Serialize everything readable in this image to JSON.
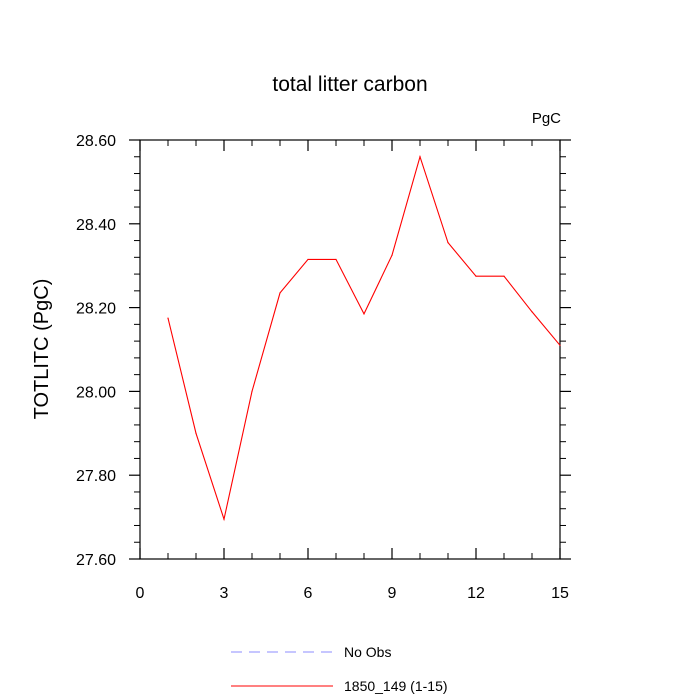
{
  "colors": {
    "model_line": "#ff0000",
    "obs_line": "#8c8cff",
    "axis": "#000000",
    "background": "#ffffff"
  },
  "chart_data": {
    "type": "line",
    "title": "total litter carbon",
    "units_label": "PgC",
    "xlabel": "",
    "ylabel": "TOTLITC  (PgC)",
    "xlim": [
      0,
      15
    ],
    "ylim": [
      27.6,
      28.6
    ],
    "x_ticks": [
      "0",
      "3",
      "6",
      "9",
      "12",
      "15"
    ],
    "y_ticks": [
      "27.60",
      "27.80",
      "28.00",
      "28.20",
      "28.40",
      "28.60"
    ],
    "grid": false,
    "legend_position": "bottom",
    "series": [
      {
        "name": "1850_149 (1-15)",
        "style": "solid",
        "color": "#ff0000",
        "x": [
          1,
          2,
          3,
          4,
          5,
          6,
          7,
          8,
          9,
          10,
          11,
          12,
          13,
          14,
          15
        ],
        "y": [
          28.175,
          27.9,
          27.695,
          28.0,
          28.235,
          28.315,
          28.315,
          28.185,
          28.325,
          28.56,
          28.355,
          28.275,
          28.275,
          28.19,
          28.11
        ]
      }
    ],
    "legend": [
      {
        "label": "No Obs",
        "style": "dashed",
        "color": "#8c8cff"
      },
      {
        "label": "1850_149 (1-15)",
        "style": "solid",
        "color": "#ff0000"
      }
    ]
  }
}
